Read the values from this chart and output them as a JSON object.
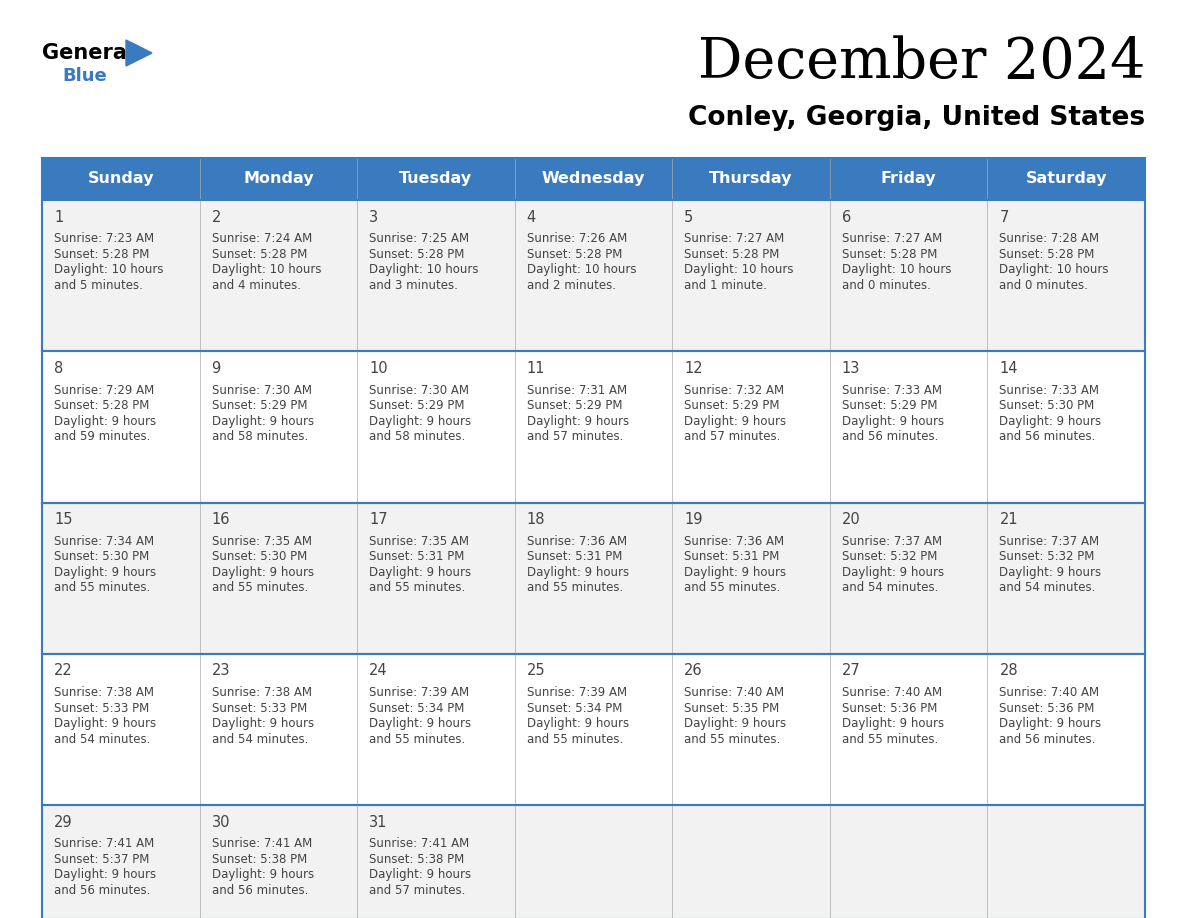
{
  "title": "December 2024",
  "subtitle": "Conley, Georgia, United States",
  "header_color": "#3a7abf",
  "header_text_color": "#ffffff",
  "border_color": "#3a7abf",
  "cell_bg_even": "#f2f2f2",
  "cell_bg_odd": "#ffffff",
  "text_color": "#444444",
  "days_of_week": [
    "Sunday",
    "Monday",
    "Tuesday",
    "Wednesday",
    "Thursday",
    "Friday",
    "Saturday"
  ],
  "calendar_data": [
    [
      {
        "day": 1,
        "sunrise": "7:23 AM",
        "sunset": "5:28 PM",
        "daylight": "10 hours and 5 minutes."
      },
      {
        "day": 2,
        "sunrise": "7:24 AM",
        "sunset": "5:28 PM",
        "daylight": "10 hours and 4 minutes."
      },
      {
        "day": 3,
        "sunrise": "7:25 AM",
        "sunset": "5:28 PM",
        "daylight": "10 hours and 3 minutes."
      },
      {
        "day": 4,
        "sunrise": "7:26 AM",
        "sunset": "5:28 PM",
        "daylight": "10 hours and 2 minutes."
      },
      {
        "day": 5,
        "sunrise": "7:27 AM",
        "sunset": "5:28 PM",
        "daylight": "10 hours and 1 minute."
      },
      {
        "day": 6,
        "sunrise": "7:27 AM",
        "sunset": "5:28 PM",
        "daylight": "10 hours and 0 minutes."
      },
      {
        "day": 7,
        "sunrise": "7:28 AM",
        "sunset": "5:28 PM",
        "daylight": "10 hours and 0 minutes."
      }
    ],
    [
      {
        "day": 8,
        "sunrise": "7:29 AM",
        "sunset": "5:28 PM",
        "daylight": "9 hours and 59 minutes."
      },
      {
        "day": 9,
        "sunrise": "7:30 AM",
        "sunset": "5:29 PM",
        "daylight": "9 hours and 58 minutes."
      },
      {
        "day": 10,
        "sunrise": "7:30 AM",
        "sunset": "5:29 PM",
        "daylight": "9 hours and 58 minutes."
      },
      {
        "day": 11,
        "sunrise": "7:31 AM",
        "sunset": "5:29 PM",
        "daylight": "9 hours and 57 minutes."
      },
      {
        "day": 12,
        "sunrise": "7:32 AM",
        "sunset": "5:29 PM",
        "daylight": "9 hours and 57 minutes."
      },
      {
        "day": 13,
        "sunrise": "7:33 AM",
        "sunset": "5:29 PM",
        "daylight": "9 hours and 56 minutes."
      },
      {
        "day": 14,
        "sunrise": "7:33 AM",
        "sunset": "5:30 PM",
        "daylight": "9 hours and 56 minutes."
      }
    ],
    [
      {
        "day": 15,
        "sunrise": "7:34 AM",
        "sunset": "5:30 PM",
        "daylight": "9 hours and 55 minutes."
      },
      {
        "day": 16,
        "sunrise": "7:35 AM",
        "sunset": "5:30 PM",
        "daylight": "9 hours and 55 minutes."
      },
      {
        "day": 17,
        "sunrise": "7:35 AM",
        "sunset": "5:31 PM",
        "daylight": "9 hours and 55 minutes."
      },
      {
        "day": 18,
        "sunrise": "7:36 AM",
        "sunset": "5:31 PM",
        "daylight": "9 hours and 55 minutes."
      },
      {
        "day": 19,
        "sunrise": "7:36 AM",
        "sunset": "5:31 PM",
        "daylight": "9 hours and 55 minutes."
      },
      {
        "day": 20,
        "sunrise": "7:37 AM",
        "sunset": "5:32 PM",
        "daylight": "9 hours and 54 minutes."
      },
      {
        "day": 21,
        "sunrise": "7:37 AM",
        "sunset": "5:32 PM",
        "daylight": "9 hours and 54 minutes."
      }
    ],
    [
      {
        "day": 22,
        "sunrise": "7:38 AM",
        "sunset": "5:33 PM",
        "daylight": "9 hours and 54 minutes."
      },
      {
        "day": 23,
        "sunrise": "7:38 AM",
        "sunset": "5:33 PM",
        "daylight": "9 hours and 54 minutes."
      },
      {
        "day": 24,
        "sunrise": "7:39 AM",
        "sunset": "5:34 PM",
        "daylight": "9 hours and 55 minutes."
      },
      {
        "day": 25,
        "sunrise": "7:39 AM",
        "sunset": "5:34 PM",
        "daylight": "9 hours and 55 minutes."
      },
      {
        "day": 26,
        "sunrise": "7:40 AM",
        "sunset": "5:35 PM",
        "daylight": "9 hours and 55 minutes."
      },
      {
        "day": 27,
        "sunrise": "7:40 AM",
        "sunset": "5:36 PM",
        "daylight": "9 hours and 55 minutes."
      },
      {
        "day": 28,
        "sunrise": "7:40 AM",
        "sunset": "5:36 PM",
        "daylight": "9 hours and 56 minutes."
      }
    ],
    [
      {
        "day": 29,
        "sunrise": "7:41 AM",
        "sunset": "5:37 PM",
        "daylight": "9 hours and 56 minutes."
      },
      {
        "day": 30,
        "sunrise": "7:41 AM",
        "sunset": "5:38 PM",
        "daylight": "9 hours and 56 minutes."
      },
      {
        "day": 31,
        "sunrise": "7:41 AM",
        "sunset": "5:38 PM",
        "daylight": "9 hours and 57 minutes."
      },
      null,
      null,
      null,
      null
    ]
  ]
}
